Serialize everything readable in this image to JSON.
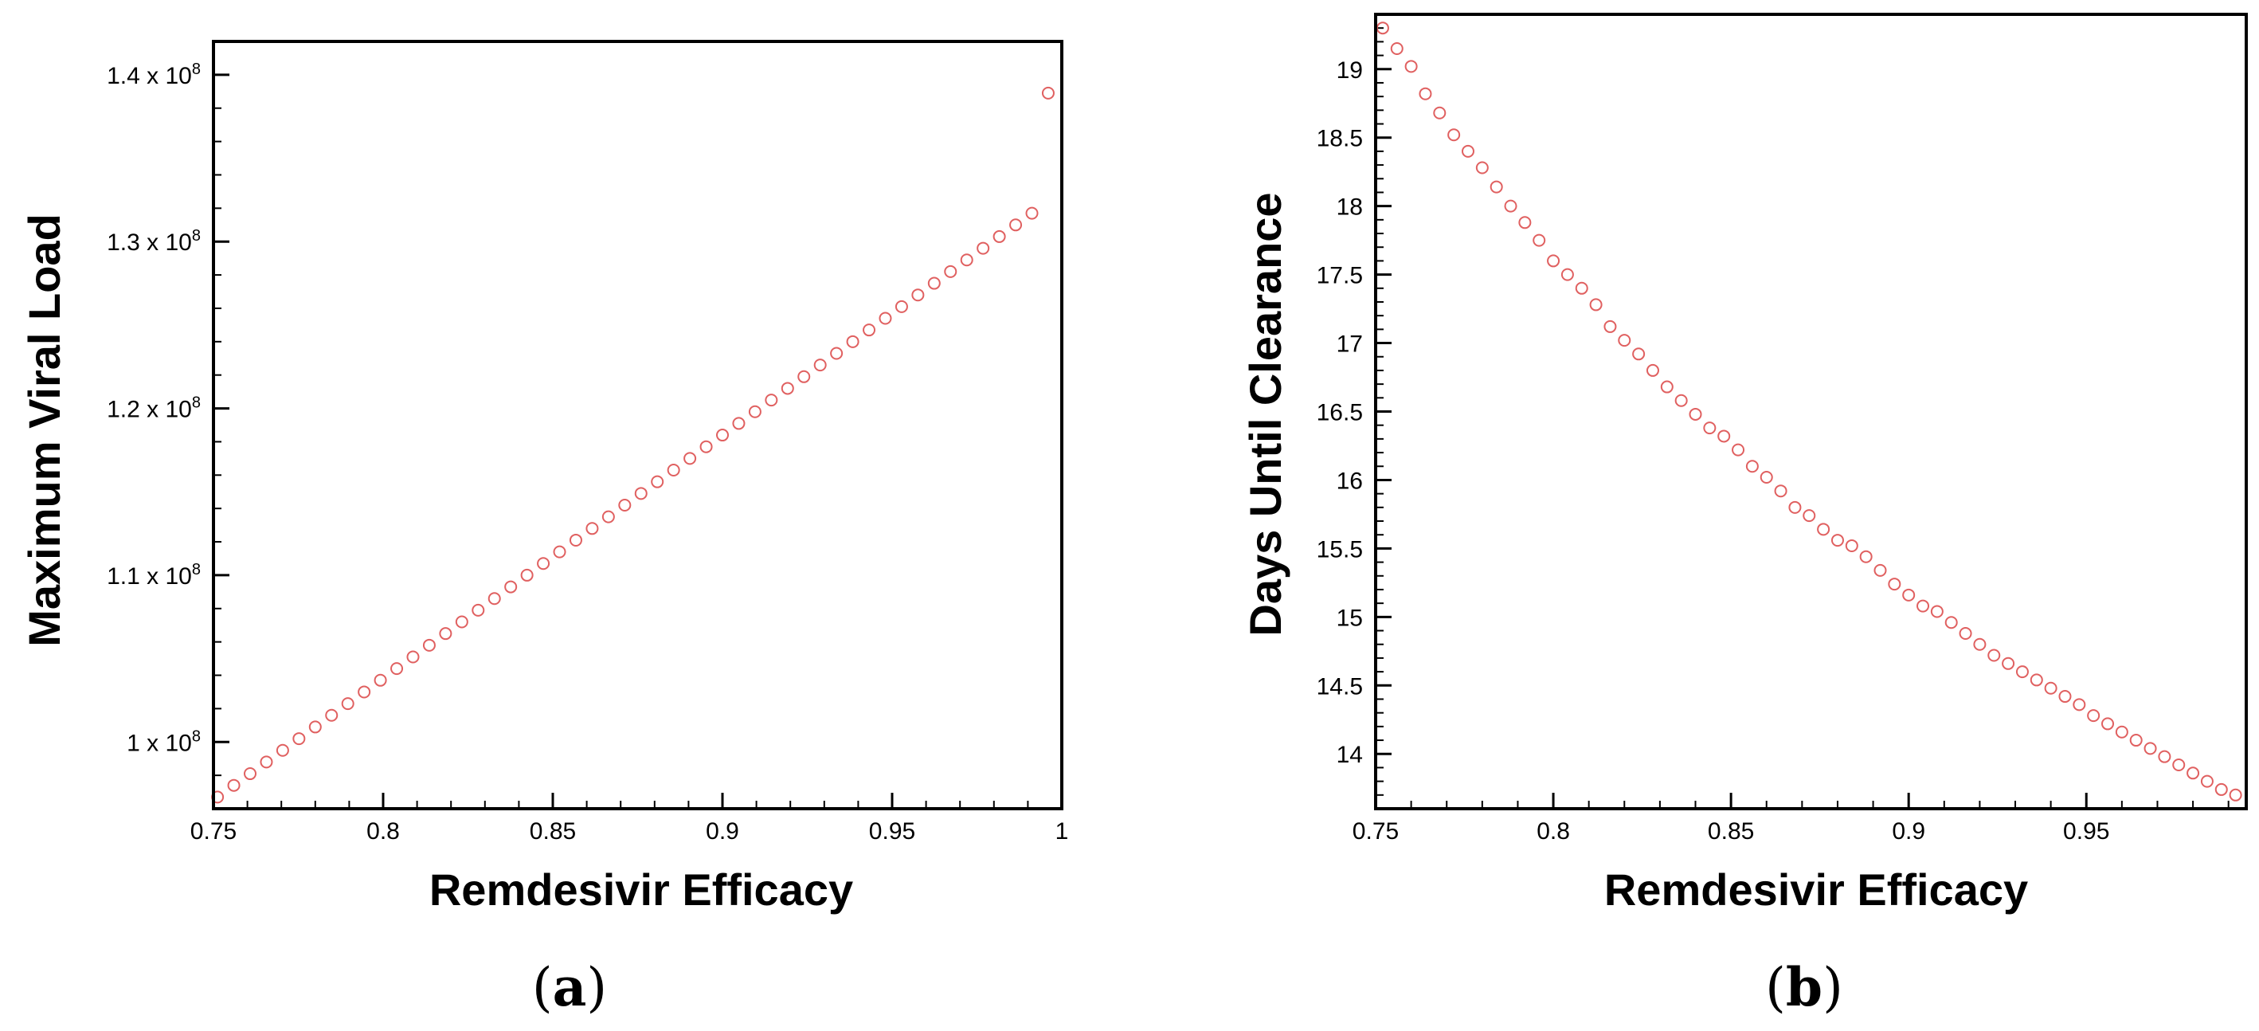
{
  "panels": [
    {
      "label_open": "(",
      "label_letter": "a",
      "label_close": ")"
    },
    {
      "label_open": "(",
      "label_letter": "b",
      "label_close": ")"
    }
  ],
  "chart_data": [
    {
      "type": "scatter",
      "xlabel": "Remdesivir Efficacy",
      "ylabel": "Maximum Viral Load",
      "xlim": [
        0.75,
        1.0
      ],
      "ylim": [
        96000000,
        142000000
      ],
      "x_ticks": [
        {
          "value": 0.75,
          "label": "0.75"
        },
        {
          "value": 0.8,
          "label": "0.8"
        },
        {
          "value": 0.85,
          "label": "0.85"
        },
        {
          "value": 0.9,
          "label": "0.9"
        },
        {
          "value": 0.95,
          "label": "0.95"
        },
        {
          "value": 1.0,
          "label": "1"
        }
      ],
      "y_ticks": [
        {
          "value": 100000000,
          "mantissa": "1",
          "exponent": "8"
        },
        {
          "value": 110000000,
          "mantissa": "1.1",
          "exponent": "8"
        },
        {
          "value": 120000000,
          "mantissa": "1.2",
          "exponent": "8"
        },
        {
          "value": 130000000,
          "mantissa": "1.3",
          "exponent": "8"
        },
        {
          "value": 140000000,
          "mantissa": "1.4",
          "exponent": "8"
        }
      ],
      "marker_color": "#e06060",
      "series": [
        {
          "x": [
            0.7512,
            0.756,
            0.7608,
            0.7656,
            0.7704,
            0.7752,
            0.78,
            0.7848,
            0.7896,
            0.7944,
            0.7992,
            0.804,
            0.8088,
            0.8136,
            0.8184,
            0.8232,
            0.828,
            0.8328,
            0.8376,
            0.8424,
            0.8472,
            0.852,
            0.8568,
            0.8616,
            0.8664,
            0.8712,
            0.876,
            0.8808,
            0.8856,
            0.8904,
            0.8952,
            0.9,
            0.9048,
            0.9096,
            0.9144,
            0.9192,
            0.924,
            0.9288,
            0.9336,
            0.9384,
            0.9432,
            0.948,
            0.9528,
            0.9576,
            0.9624,
            0.9672,
            0.972,
            0.9768,
            0.9816,
            0.9864,
            0.9912,
            0.996
          ],
          "y": [
            96700000,
            97400000,
            98100000,
            98800000,
            99500000,
            100200000,
            100900000,
            101600000,
            102300000,
            103000000,
            103700000,
            104400000,
            105100000,
            105800000,
            106500000,
            107200000,
            107900000,
            108600000,
            109300000,
            110000000,
            110700000,
            111400000,
            112100000,
            112800000,
            113500000,
            114200000,
            114900000,
            115600000,
            116300000,
            117000000,
            117700000,
            118400000,
            119100000,
            119800000,
            120500000,
            121200000,
            121900000,
            122600000,
            123300000,
            124000000,
            124700000,
            125400000,
            126100000,
            126800000,
            127500000,
            128200000,
            128900000,
            129600000,
            130300000,
            131000000,
            131700000,
            138900000
          ]
        }
      ]
    },
    {
      "type": "scatter",
      "xlabel": "Remdesivir Efficacy",
      "ylabel": "Days Until Clearance",
      "xlim": [
        0.75,
        0.995
      ],
      "ylim": [
        13.6,
        19.4
      ],
      "x_ticks": [
        {
          "value": 0.75,
          "label": "0.75"
        },
        {
          "value": 0.8,
          "label": "0.8"
        },
        {
          "value": 0.85,
          "label": "0.85"
        },
        {
          "value": 0.9,
          "label": "0.9"
        },
        {
          "value": 0.95,
          "label": "0.95"
        }
      ],
      "y_ticks": [
        {
          "value": 14,
          "label": "14"
        },
        {
          "value": 14.5,
          "label": "14.5"
        },
        {
          "value": 15,
          "label": "15"
        },
        {
          "value": 15.5,
          "label": "15.5"
        },
        {
          "value": 16,
          "label": "16"
        },
        {
          "value": 16.5,
          "label": "16.5"
        },
        {
          "value": 17,
          "label": "17"
        },
        {
          "value": 17.5,
          "label": "17.5"
        },
        {
          "value": 18,
          "label": "18"
        },
        {
          "value": 18.5,
          "label": "18.5"
        },
        {
          "value": 19,
          "label": "19"
        }
      ],
      "marker_color": "#e06060",
      "series": [
        {
          "x": [
            0.752,
            0.756,
            0.76,
            0.764,
            0.768,
            0.772,
            0.776,
            0.78,
            0.784,
            0.788,
            0.792,
            0.796,
            0.8,
            0.804,
            0.808,
            0.812,
            0.816,
            0.82,
            0.824,
            0.828,
            0.832,
            0.836,
            0.84,
            0.844,
            0.848,
            0.852,
            0.856,
            0.86,
            0.864,
            0.868,
            0.872,
            0.876,
            0.88,
            0.884,
            0.888,
            0.892,
            0.896,
            0.9,
            0.904,
            0.908,
            0.912,
            0.916,
            0.92,
            0.924,
            0.928,
            0.932,
            0.936,
            0.94,
            0.944,
            0.948,
            0.952,
            0.956,
            0.96,
            0.964,
            0.968,
            0.972,
            0.976,
            0.98,
            0.984,
            0.988,
            0.992
          ],
          "y": [
            19.3,
            19.15,
            19.02,
            18.82,
            18.68,
            18.52,
            18.4,
            18.28,
            18.14,
            18.0,
            17.88,
            17.75,
            17.6,
            17.5,
            17.4,
            17.28,
            17.12,
            17.02,
            16.92,
            16.8,
            16.68,
            16.58,
            16.48,
            16.38,
            16.32,
            16.22,
            16.1,
            16.02,
            15.92,
            15.8,
            15.74,
            15.64,
            15.56,
            15.52,
            15.44,
            15.34,
            15.24,
            15.16,
            15.08,
            15.04,
            14.96,
            14.88,
            14.8,
            14.72,
            14.66,
            14.6,
            14.54,
            14.48,
            14.42,
            14.36,
            14.28,
            14.22,
            14.16,
            14.1,
            14.04,
            13.98,
            13.92,
            13.86,
            13.8,
            13.74,
            13.7
          ]
        }
      ]
    }
  ]
}
